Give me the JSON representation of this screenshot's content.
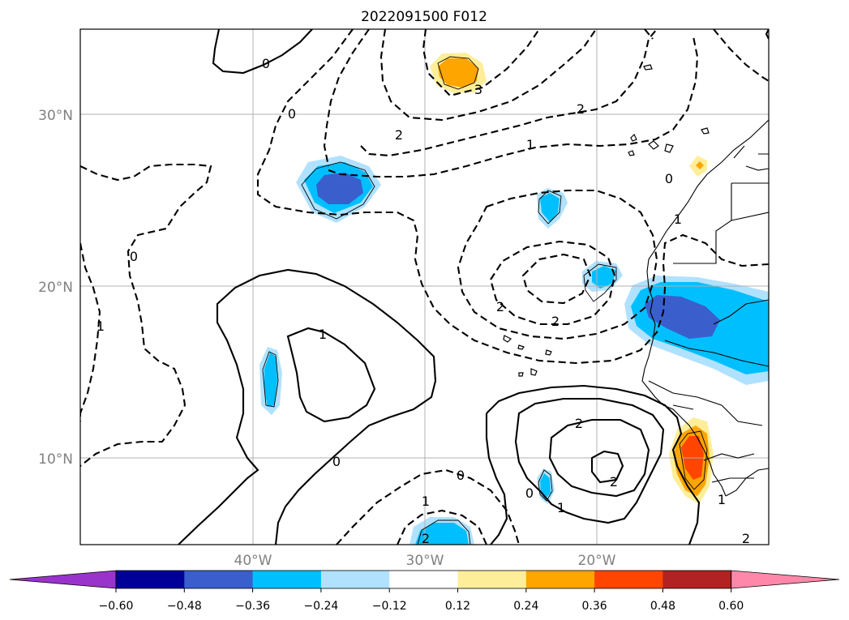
{
  "title": "2022091500 F012",
  "lat_labels": [
    "30°N",
    "20°N",
    "10°N"
  ],
  "lon_labels": [
    "40°W",
    "30°W",
    "20°W"
  ],
  "colorbar": {
    "ticks": [
      "−0.60",
      "−0.48",
      "−0.36",
      "−0.24",
      "−0.12",
      "0.12",
      "0.24",
      "0.36",
      "0.48",
      "0.60"
    ],
    "colors": [
      "#9933cc",
      "#000099",
      "#3a5fcd",
      "#00bfff",
      "#b0e2ff",
      "#ffffff",
      "#ffee99",
      "#ffa500",
      "#ff4500",
      "#b22222",
      "#ff88aa"
    ]
  },
  "contour_labels": [
    "0",
    "0",
    "0",
    "0",
    "0",
    "1",
    "2",
    "3",
    "2",
    "1",
    "1",
    "2",
    "2",
    "2",
    "1",
    "0",
    "0",
    "1",
    "2",
    "2",
    "1",
    "1",
    "2"
  ],
  "colors": {
    "pos_light": "#ffee99",
    "pos_mid": "#ffa500",
    "pos_strong": "#ff4500",
    "neg_light": "#b0e2ff",
    "neg_mid": "#00bfff",
    "neg_strong": "#3a5fcd",
    "grid": "#b0b0b0",
    "tick_text": "#808080"
  }
}
